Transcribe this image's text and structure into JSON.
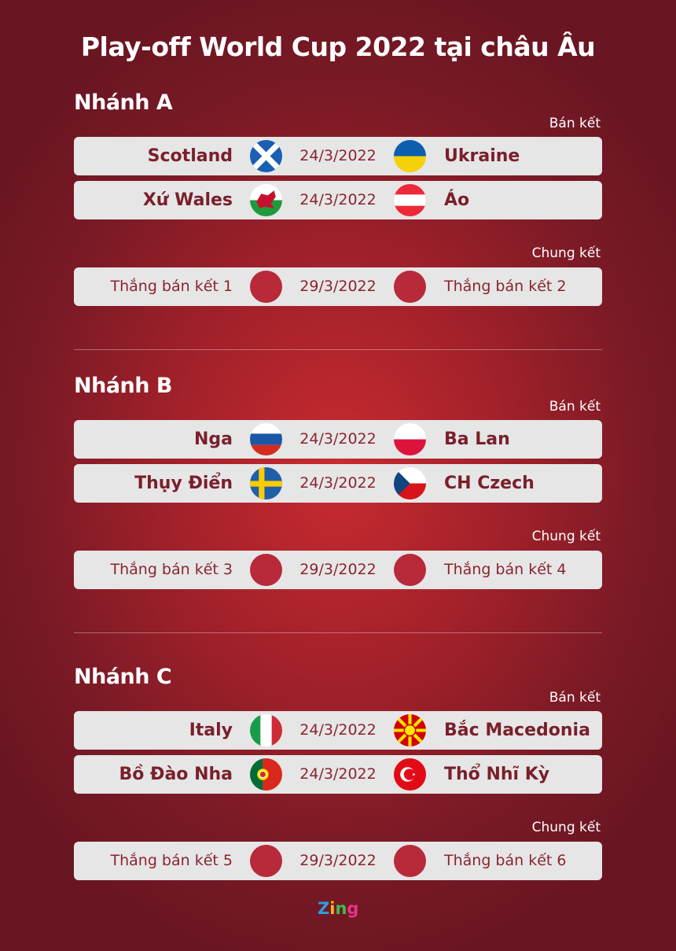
{
  "title": "Play-off World Cup 2022 tại châu Âu",
  "colors": {
    "team_text": "#7a1f2b",
    "row_bg": "#e6e6e6",
    "placeholder_circle": "#b8293a"
  },
  "sections": [
    {
      "title": "Nhánh A",
      "semifinal_label": "Bán kết",
      "final_label": "Chung kết",
      "semifinals": [
        {
          "home": "Scotland",
          "home_flag": "scotland-flag",
          "date": "24/3/2022",
          "away": "Ukraine",
          "away_flag": "ukraine-flag"
        },
        {
          "home": "Xứ Wales",
          "home_flag": "wales-flag",
          "date": "24/3/2022",
          "away": "Áo",
          "away_flag": "austria-flag"
        }
      ],
      "final": {
        "home": "Thắng bán kết 1",
        "date": "29/3/2022",
        "away": "Thắng bán kết 2"
      }
    },
    {
      "title": "Nhánh B",
      "semifinal_label": "Bán kết",
      "final_label": "Chung kết",
      "semifinals": [
        {
          "home": "Nga",
          "home_flag": "russia-flag",
          "date": "24/3/2022",
          "away": "Ba Lan",
          "away_flag": "poland-flag"
        },
        {
          "home": "Thụy Điển",
          "home_flag": "sweden-flag",
          "date": "24/3/2022",
          "away": "CH Czech",
          "away_flag": "czech-flag"
        }
      ],
      "final": {
        "home": "Thắng bán kết 3",
        "date": "29/3/2022",
        "away": "Thắng bán kết 4"
      }
    },
    {
      "title": "Nhánh C",
      "semifinal_label": "Bán kết",
      "final_label": "Chung kết",
      "semifinals": [
        {
          "home": "Italy",
          "home_flag": "italy-flag",
          "date": "24/3/2022",
          "away": "Bắc Macedonia",
          "away_flag": "north-macedonia-flag"
        },
        {
          "home": "Bồ Đào Nha",
          "home_flag": "portugal-flag",
          "date": "24/3/2022",
          "away": "Thổ Nhĩ Kỳ",
          "away_flag": "turkey-flag"
        }
      ],
      "final": {
        "home": "Thắng bán kết 5",
        "date": "29/3/2022",
        "away": "Thắng bán kết 6"
      }
    }
  ],
  "logo": "Zing"
}
